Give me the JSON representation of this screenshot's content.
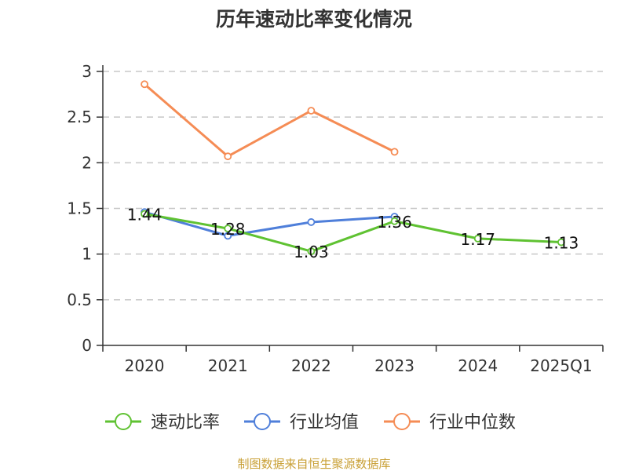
{
  "chart_data": {
    "type": "line",
    "title": "历年速动比率变化情况",
    "categories": [
      "2020",
      "2021",
      "2022",
      "2023",
      "2024",
      "2025Q1"
    ],
    "ylim": [
      0,
      3
    ],
    "yticks": [
      "0",
      "0.5",
      "1",
      "1.5",
      "2",
      "2.5",
      "3"
    ],
    "grid": true,
    "legend_position": "bottom",
    "series": [
      {
        "name": "速动比率",
        "color": "#5fc232",
        "values": [
          1.44,
          1.28,
          1.03,
          1.36,
          1.17,
          1.13
        ],
        "labels": [
          "1.44",
          "1.28",
          "1.03",
          "1.36",
          "1.17",
          "1.13"
        ]
      },
      {
        "name": "行业均值",
        "color": "#4f7fda",
        "values": [
          1.46,
          1.2,
          1.35,
          1.41,
          null,
          null
        ]
      },
      {
        "name": "行业中位数",
        "color": "#f58c55",
        "values": [
          2.86,
          2.07,
          2.57,
          2.12,
          null,
          null
        ]
      }
    ]
  },
  "source": {
    "text": "制图数据来自恒生聚源数据库",
    "color": "#c9a036"
  }
}
